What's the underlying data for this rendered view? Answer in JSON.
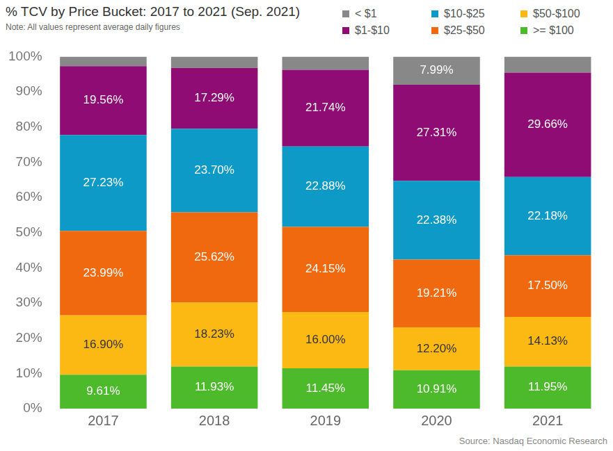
{
  "chart_data": {
    "type": "bar",
    "title": "% TCV by Price Bucket: 2017 to 2021 (Sep. 2021)",
    "subtitle": "Note: All values represent average daily figures",
    "source": "Source: Nasdaq Economic Research",
    "categories": [
      "2017",
      "2018",
      "2019",
      "2020",
      "2021"
    ],
    "stacked": true,
    "data_labels": true,
    "grid": false,
    "legend": "top-right",
    "ylim": [
      0,
      100
    ],
    "yticks": [
      {
        "value": 0,
        "label": "0%"
      },
      {
        "value": 10,
        "label": "10%"
      },
      {
        "value": 20,
        "label": "20%"
      },
      {
        "value": 30,
        "label": "30%"
      },
      {
        "value": 40,
        "label": "40%"
      },
      {
        "value": 50,
        "label": "50%"
      },
      {
        "value": 60,
        "label": "60%"
      },
      {
        "value": 70,
        "label": "70%"
      },
      {
        "value": 80,
        "label": "80%"
      },
      {
        "value": 90,
        "label": "90%"
      },
      {
        "value": 100,
        "label": "100%"
      }
    ],
    "series": [
      {
        "name": ">= $100",
        "color": "#4cba2b",
        "values": [
          9.61,
          11.93,
          11.45,
          10.91,
          11.95
        ],
        "value_labels": [
          "9.61%",
          "11.93%",
          "11.45%",
          "10.91%",
          "11.95%"
        ]
      },
      {
        "name": "$50-$100",
        "color": "#fdb913",
        "values": [
          16.9,
          18.23,
          16.0,
          12.2,
          14.13
        ],
        "value_labels": [
          "16.90%",
          "18.23%",
          "16.00%",
          "12.20%",
          "14.13%"
        ]
      },
      {
        "name": "$25-$50",
        "color": "#f0690f",
        "values": [
          23.99,
          25.62,
          24.15,
          19.21,
          17.5
        ],
        "value_labels": [
          "23.99%",
          "25.62%",
          "24.15%",
          "19.21%",
          "17.50%"
        ]
      },
      {
        "name": "$10-$25",
        "color": "#0d9ac6",
        "values": [
          27.23,
          23.7,
          22.88,
          22.38,
          22.18
        ],
        "value_labels": [
          "27.23%",
          "23.70%",
          "22.88%",
          "22.38%",
          "22.18%"
        ]
      },
      {
        "name": "$1-$10",
        "color": "#8e0c74",
        "values": [
          19.56,
          17.29,
          21.74,
          27.31,
          29.66
        ],
        "value_labels": [
          "19.56%",
          "17.29%",
          "21.74%",
          "27.31%",
          "29.66%"
        ]
      },
      {
        "name": "< $1",
        "color": "#888888",
        "values": [
          2.71,
          3.23,
          3.78,
          7.99,
          4.58
        ],
        "value_labels": [
          null,
          null,
          null,
          "7.99%",
          null
        ]
      }
    ]
  }
}
